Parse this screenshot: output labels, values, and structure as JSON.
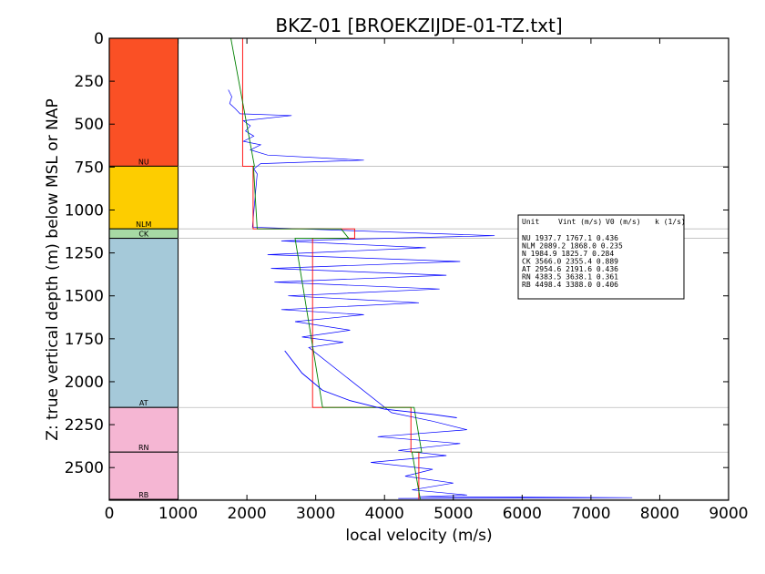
{
  "chart_data": {
    "type": "line",
    "title": "BKZ-01 [BROEKZIJDE-01-TZ.txt]",
    "xlabel": "local velocity (m/s)",
    "ylabel": "Z: true vertical depth (m) below MSL or NAP",
    "xlim": [
      0,
      9000
    ],
    "ylim": [
      2690,
      0
    ],
    "x_ticks": [
      "0",
      "1000",
      "2000",
      "3000",
      "4000",
      "5000",
      "6000",
      "7000",
      "8000",
      "9000"
    ],
    "y_ticks": [
      "0",
      "250",
      "500",
      "750",
      "1000",
      "1250",
      "1500",
      "1750",
      "2000",
      "2250",
      "2500"
    ],
    "layers": [
      {
        "name": "NU",
        "top": 0,
        "bottom": 745,
        "color": "#fa5025",
        "vint": 1937.7,
        "v0": 1767.1,
        "k": 0.436
      },
      {
        "name": "NLM",
        "top": 745,
        "bottom": 1110,
        "color": "#fdcd00",
        "vint": 2089.2,
        "v0": 1868.0,
        "k": 0.235
      },
      {
        "name": "CK",
        "top": 1110,
        "bottom": 1165,
        "color": "#a7d9a4",
        "vint": 3566.0,
        "v0": 2355.4,
        "k": 0.889
      },
      {
        "name": "AT",
        "top": 1165,
        "bottom": 2150,
        "color": "#a5c9d9",
        "vint": 2954.6,
        "v0": 2191.6,
        "k": 0.436
      },
      {
        "name": "RN",
        "top": 2150,
        "bottom": 2410,
        "color": "#f5b6d3",
        "vint": 4383.5,
        "v0": 3638.1,
        "k": 0.361
      },
      {
        "name": "RB",
        "top": 2410,
        "bottom": 2685,
        "color": "#f5b6d3",
        "vint": 4498.4,
        "v0": 3388.0,
        "k": 0.406
      }
    ],
    "legend": {
      "headers": [
        "Unit",
        "Vint (m/s)",
        "V0 (m/s)",
        "k (1/s)"
      ],
      "rows": [
        "NU      1937.7  1767.1  0.436",
        "NLM     2089.2  1868.0  0.235",
        "N       1984.9  1825.7  0.284",
        "CK      3566.0  2355.4  0.889",
        "AT      2954.6  2191.6  0.436",
        "RN      4383.5  3638.1  0.361",
        "RB      4498.4  3388.0  0.406"
      ]
    },
    "series": [
      {
        "color": "#0000ff",
        "points": [
          [
            1730,
            300
          ],
          [
            1780,
            340
          ],
          [
            1750,
            380
          ],
          [
            1830,
            410
          ],
          [
            1900,
            440
          ],
          [
            2650,
            450
          ],
          [
            1950,
            480
          ],
          [
            2050,
            510
          ],
          [
            1980,
            540
          ],
          [
            2100,
            570
          ],
          [
            1950,
            600
          ],
          [
            2200,
            620
          ],
          [
            2050,
            650
          ],
          [
            2300,
            680
          ],
          [
            3700,
            710
          ],
          [
            2200,
            730
          ],
          [
            2100,
            760
          ],
          [
            2150,
            790
          ],
          [
            2080,
            1100
          ],
          [
            5600,
            1150
          ],
          [
            2500,
            1180
          ],
          [
            4600,
            1220
          ],
          [
            2300,
            1260
          ],
          [
            5100,
            1300
          ],
          [
            2350,
            1340
          ],
          [
            4900,
            1380
          ],
          [
            2400,
            1420
          ],
          [
            4800,
            1460
          ],
          [
            2600,
            1500
          ],
          [
            4500,
            1540
          ],
          [
            2500,
            1580
          ],
          [
            3700,
            1610
          ],
          [
            2700,
            1650
          ],
          [
            3500,
            1700
          ],
          [
            2800,
            1740
          ],
          [
            3400,
            1770
          ],
          [
            2900,
            1800
          ],
          [
            4100,
            2180
          ],
          [
            4700,
            2230
          ],
          [
            5200,
            2280
          ],
          [
            3900,
            2320
          ],
          [
            5100,
            2360
          ],
          [
            4200,
            2400
          ],
          [
            4900,
            2430
          ],
          [
            3800,
            2470
          ],
          [
            4700,
            2510
          ],
          [
            4300,
            2550
          ],
          [
            5000,
            2590
          ],
          [
            4400,
            2630
          ],
          [
            5200,
            2660
          ],
          [
            4500,
            2670
          ],
          [
            7600,
            2675
          ],
          [
            4200,
            2680
          ]
        ]
      },
      {
        "color": "#ff0000",
        "points": [
          [
            1937.7,
            0
          ],
          [
            1937.7,
            745
          ],
          [
            2089.2,
            745
          ],
          [
            2089.2,
            1110
          ],
          [
            3566.0,
            1110
          ],
          [
            3566.0,
            1165
          ],
          [
            2954.6,
            1165
          ],
          [
            2954.6,
            2150
          ],
          [
            4383.5,
            2150
          ],
          [
            4383.5,
            2410
          ],
          [
            4498.4,
            2410
          ],
          [
            4498.4,
            2685
          ]
        ]
      },
      {
        "color": "#008000",
        "points": [
          [
            1767,
            0
          ],
          [
            2110,
            745
          ],
          [
            2095,
            745
          ],
          [
            2150,
            1110
          ],
          [
            3370,
            1110
          ],
          [
            3480,
            1165
          ],
          [
            2700,
            1165
          ],
          [
            3100,
            2150
          ],
          [
            4430,
            2150
          ],
          [
            4540,
            2410
          ],
          [
            4400,
            2410
          ],
          [
            4520,
            2685
          ]
        ]
      },
      {
        "color": "#0000ff",
        "points": [
          [
            2550,
            1820
          ],
          [
            2800,
            1950
          ],
          [
            3100,
            2050
          ],
          [
            3500,
            2110
          ],
          [
            4000,
            2160
          ],
          [
            4700,
            2190
          ],
          [
            5050,
            2210
          ]
        ]
      }
    ]
  }
}
